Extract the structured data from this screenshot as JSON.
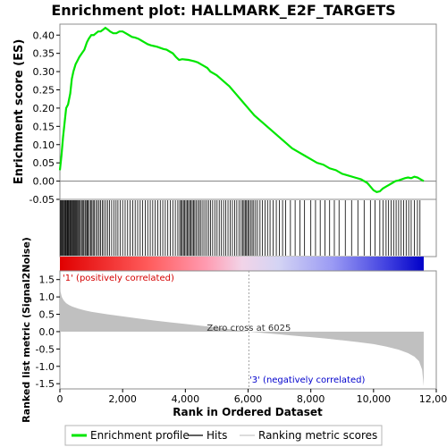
{
  "chart_data": {
    "type": "line",
    "title": "Enrichment plot: HALLMARK_E2F_TARGETS",
    "es_panel": {
      "ylabel": "Enrichment score (ES)",
      "ylim": [
        -0.05,
        0.43
      ],
      "yticks": [
        -0.05,
        0.0,
        0.05,
        0.1,
        0.15,
        0.2,
        0.25,
        0.3,
        0.35,
        0.4
      ],
      "ytick_labels": [
        "-0.05",
        "0.00",
        "0.05",
        "0.10",
        "0.15",
        "0.20",
        "0.25",
        "0.30",
        "0.35",
        "0.40"
      ],
      "series": [
        {
          "name": "Enrichment profile",
          "color": "#00e600",
          "x": [
            0,
            50,
            100,
            150,
            200,
            260,
            330,
            380,
            430,
            500,
            560,
            620,
            700,
            780,
            860,
            920,
            1000,
            1080,
            1150,
            1220,
            1300,
            1380,
            1450,
            1530,
            1600,
            1700,
            1800,
            1900,
            2000,
            2100,
            2200,
            2300,
            2400,
            2500,
            2600,
            2700,
            2800,
            2900,
            3000,
            3100,
            3200,
            3300,
            3400,
            3500,
            3600,
            3700,
            3800,
            3900,
            4000,
            4100,
            4200,
            4300,
            4400,
            4500,
            4600,
            4700,
            4800,
            5000,
            5200,
            5400,
            5600,
            5800,
            6000,
            6200,
            6400,
            6600,
            6800,
            7000,
            7200,
            7400,
            7600,
            7800,
            8000,
            8200,
            8400,
            8600,
            8800,
            9000,
            9200,
            9400,
            9600,
            9800,
            9900,
            10000,
            10100,
            10200,
            10300,
            10400,
            10500,
            10600,
            10700,
            10800,
            10900,
            11000,
            11100,
            11200,
            11300,
            11400,
            11500,
            11600
          ],
          "y": [
            0.03,
            0.07,
            0.12,
            0.16,
            0.2,
            0.21,
            0.24,
            0.28,
            0.3,
            0.32,
            0.33,
            0.34,
            0.35,
            0.36,
            0.38,
            0.39,
            0.4,
            0.4,
            0.405,
            0.41,
            0.41,
            0.415,
            0.42,
            0.415,
            0.41,
            0.405,
            0.405,
            0.41,
            0.41,
            0.405,
            0.4,
            0.395,
            0.393,
            0.39,
            0.385,
            0.38,
            0.375,
            0.372,
            0.37,
            0.368,
            0.365,
            0.362,
            0.36,
            0.355,
            0.35,
            0.34,
            0.332,
            0.334,
            0.333,
            0.332,
            0.33,
            0.328,
            0.325,
            0.32,
            0.315,
            0.31,
            0.3,
            0.29,
            0.275,
            0.26,
            0.24,
            0.22,
            0.2,
            0.18,
            0.165,
            0.15,
            0.135,
            0.12,
            0.105,
            0.09,
            0.08,
            0.07,
            0.06,
            0.05,
            0.045,
            0.035,
            0.03,
            0.02,
            0.015,
            0.01,
            0.005,
            -0.005,
            -0.015,
            -0.025,
            -0.03,
            -0.028,
            -0.02,
            -0.015,
            -0.01,
            -0.005,
            0.0,
            0.002,
            0.005,
            0.008,
            0.01,
            0.008,
            0.012,
            0.01,
            0.005,
            0.0
          ]
        }
      ]
    },
    "hits_panel": {
      "legend_name": "Hits",
      "color": "#000000",
      "positions": [
        20,
        45,
        70,
        95,
        120,
        150,
        175,
        200,
        230,
        255,
        280,
        310,
        335,
        360,
        390,
        415,
        440,
        470,
        500,
        530,
        560,
        590,
        620,
        650,
        690,
        720,
        760,
        800,
        830,
        870,
        900,
        940,
        980,
        1020,
        1060,
        1100,
        1150,
        1200,
        1250,
        1300,
        1350,
        1400,
        1460,
        1520,
        1580,
        1650,
        1720,
        1790,
        1850,
        1920,
        2000,
        2080,
        2160,
        2240,
        2320,
        2400,
        2480,
        2560,
        2640,
        2720,
        2800,
        2880,
        2960,
        3040,
        3120,
        3200,
        3280,
        3360,
        3440,
        3520,
        3600,
        3680,
        3760,
        3820,
        3860,
        3900,
        3940,
        3980,
        4020,
        4060,
        4100,
        4140,
        4180,
        4220,
        4260,
        4300,
        4350,
        4400,
        4450,
        4500,
        4560,
        4620,
        4680,
        4740,
        4800,
        4870,
        4940,
        5010,
        5080,
        5150,
        5220,
        5290,
        5360,
        5430,
        5500,
        5570,
        5640,
        5710,
        5780,
        5830,
        5870,
        5910,
        5950,
        5990,
        6030,
        6080,
        6130,
        6180,
        6240,
        6300,
        6380,
        6460,
        6540,
        6620,
        6700,
        6800,
        6900,
        7000,
        7100,
        7200,
        7350,
        7500,
        7650,
        7800,
        8000,
        8150,
        8300,
        8450,
        8600,
        8750,
        8900,
        9100,
        9300,
        9500,
        9700,
        9900,
        10050,
        10200,
        10300,
        10400,
        10480,
        10560,
        10640,
        10720,
        10800,
        10880,
        10960,
        11040,
        11120,
        11200,
        11300,
        11400,
        11480
      ]
    },
    "ranking_panel": {
      "legend_name": "Ranking metric scores",
      "ylabel": "Ranked list metric (Signal2Noise)",
      "ylim": [
        -1.65,
        1.75
      ],
      "yticks": [
        -1.5,
        -1.0,
        -0.5,
        0.0,
        0.5,
        1.0,
        1.5
      ],
      "ytick_labels": [
        "-1.5",
        "-1.0",
        "-0.5",
        "0.0",
        "0.5",
        "1.0",
        "1.5"
      ],
      "x": [
        0,
        20,
        60,
        120,
        200,
        300,
        400,
        600,
        800,
        1000,
        1500,
        2000,
        2500,
        3000,
        3500,
        4000,
        4500,
        5000,
        5500,
        6025,
        6500,
        7000,
        7500,
        8000,
        8500,
        9000,
        9500,
        10000,
        10400,
        10800,
        11100,
        11300,
        11450,
        11550,
        11600
      ],
      "y": [
        1.62,
        1.15,
        1.0,
        0.9,
        0.82,
        0.76,
        0.72,
        0.66,
        0.61,
        0.57,
        0.5,
        0.44,
        0.38,
        0.32,
        0.27,
        0.22,
        0.17,
        0.12,
        0.06,
        0.0,
        -0.04,
        -0.08,
        -0.12,
        -0.16,
        -0.2,
        -0.25,
        -0.3,
        -0.36,
        -0.43,
        -0.52,
        -0.62,
        -0.72,
        -0.85,
        -1.1,
        -1.57
      ],
      "zero_cross_label": "Zero cross at 6025",
      "zero_cross_x": 6025,
      "positive_label": "'1' (positively correlated)",
      "negative_label": "'3' (negatively correlated)",
      "positive_color": "#d40000",
      "negative_color": "#0000cc"
    },
    "x_axis": {
      "xlabel": "Rank in Ordered Dataset",
      "xlim": [
        0,
        12000
      ],
      "xticks": [
        0,
        2000,
        4000,
        6000,
        8000,
        10000,
        12000
      ],
      "xtick_labels": [
        "0",
        "2,000",
        "4,000",
        "6,000",
        "8,000",
        "10,000",
        "12,000"
      ],
      "n_genes": 11600
    },
    "legend": {
      "items": [
        {
          "label": "Enrichment profile",
          "color": "#00e600",
          "style": "thick"
        },
        {
          "label": "Hits",
          "color": "#000000",
          "style": "thin"
        },
        {
          "label": "Ranking metric scores",
          "color": "#c8c8c8",
          "style": "thin"
        }
      ]
    }
  }
}
